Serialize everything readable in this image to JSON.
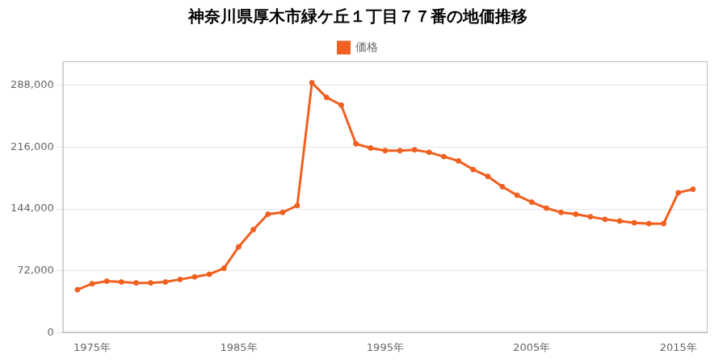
{
  "chart_data": {
    "type": "line",
    "title": "神奈川県厚木市緑ケ丘１丁目７７番の地価推移",
    "x": [
      1974,
      1975,
      1976,
      1977,
      1978,
      1979,
      1980,
      1981,
      1982,
      1983,
      1984,
      1985,
      1986,
      1987,
      1988,
      1989,
      1990,
      1991,
      1992,
      1993,
      1994,
      1995,
      1996,
      1997,
      1998,
      1999,
      2000,
      2001,
      2002,
      2003,
      2004,
      2005,
      2006,
      2007,
      2008,
      2009,
      2010,
      2011,
      2012,
      2013,
      2014,
      2015,
      2016
    ],
    "series": [
      {
        "name": "価格",
        "color": "#f06020",
        "marker": "circle",
        "line_style": "solid",
        "values": [
          50000,
          57000,
          60000,
          59000,
          58000,
          58000,
          59000,
          62000,
          65000,
          68000,
          75000,
          100000,
          120000,
          138000,
          140000,
          148000,
          291000,
          274000,
          265000,
          220000,
          215000,
          212000,
          212000,
          213000,
          210000,
          205000,
          200000,
          190000,
          182000,
          170000,
          160000,
          152000,
          145000,
          140000,
          138000,
          135000,
          132000,
          130000,
          128000,
          127000,
          127000,
          163000,
          167000
        ]
      }
    ],
    "xlim": [
      1973,
      2017
    ],
    "xticks": [
      {
        "value": 1975,
        "label": "1975年"
      },
      {
        "value": 1985,
        "label": "1985年"
      },
      {
        "value": 1995,
        "label": "1995年"
      },
      {
        "value": 2005,
        "label": "2005年"
      },
      {
        "value": 2015,
        "label": "2015年"
      }
    ],
    "ylim": [
      0,
      316000
    ],
    "yticks": [
      0,
      {
        "value": 72000,
        "label": "72,000"
      },
      {
        "value": 144000,
        "label": "144,000"
      },
      {
        "value": 216000,
        "label": "216,000"
      },
      {
        "value": 288000,
        "label": "288,000"
      }
    ],
    "grid": "y",
    "legend": "top"
  }
}
